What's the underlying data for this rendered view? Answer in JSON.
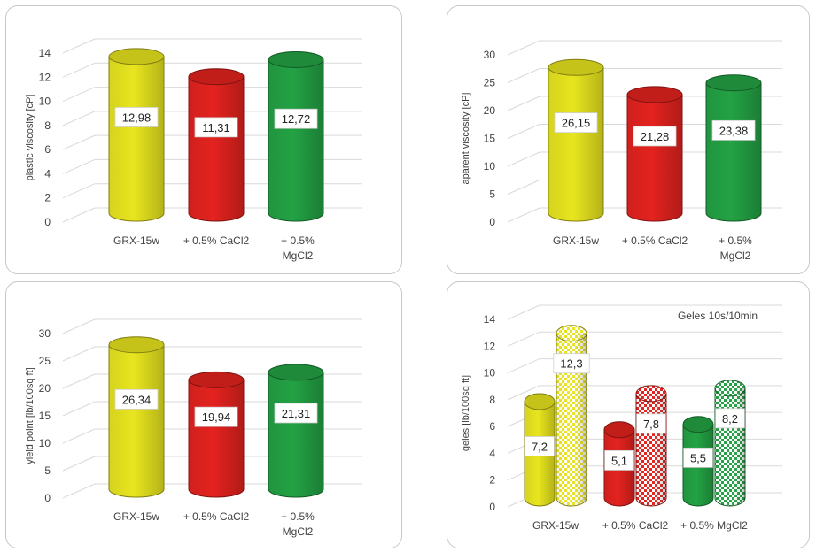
{
  "chart_data": [
    {
      "type": "bar",
      "ylabel": "plastic viscosity [cP]",
      "ylim": [
        0,
        14
      ],
      "yticks": [
        "0",
        "2",
        "4",
        "6",
        "8",
        "10",
        "12",
        "14"
      ],
      "categories": [
        "GRX-15w",
        "+ 0.5% CaCl2",
        "+ 0.5% MgCl2"
      ],
      "values": [
        12.98,
        11.31,
        12.72
      ],
      "labels": [
        "12,98",
        "11,31",
        "12,72"
      ],
      "colors": [
        "#e8e51f",
        "#e3231f",
        "#23a244"
      ],
      "grid": true
    },
    {
      "type": "bar",
      "ylabel": "aparent viscosity [cP]",
      "ylim": [
        0,
        30
      ],
      "yticks": [
        "0",
        "5",
        "10",
        "15",
        "20",
        "25",
        "30"
      ],
      "categories": [
        "GRX-15w",
        "+ 0.5% CaCl2",
        "+ 0.5% MgCl2"
      ],
      "values": [
        26.15,
        21.28,
        23.38
      ],
      "labels": [
        "26,15",
        "21,28",
        "23,38"
      ],
      "colors": [
        "#e8e51f",
        "#e3231f",
        "#23a244"
      ],
      "grid": true
    },
    {
      "type": "bar",
      "ylabel": "yield point [lb/100sq ft]",
      "ylim": [
        0,
        30
      ],
      "yticks": [
        "0",
        "5",
        "10",
        "15",
        "20",
        "25",
        "30"
      ],
      "categories": [
        "GRX-15w",
        "+ 0.5% CaCl2",
        "+ 0.5% MgCl2"
      ],
      "values": [
        26.34,
        19.94,
        21.31
      ],
      "labels": [
        "26,34",
        "19,94",
        "21,31"
      ],
      "colors": [
        "#e8e51f",
        "#e3231f",
        "#23a244"
      ],
      "grid": true
    },
    {
      "type": "bar",
      "title": "Geles 10s/10min",
      "ylabel": "geles [lb/100sq ft]",
      "ylim": [
        0,
        14
      ],
      "yticks": [
        "0",
        "2",
        "4",
        "6",
        "8",
        "10",
        "12",
        "14"
      ],
      "categories": [
        "GRX-15w",
        "+ 0.5% CaCl2",
        "+ 0.5% MgCl2"
      ],
      "series": [
        {
          "values": [
            7.2,
            5.1,
            5.5
          ],
          "labels": [
            "7,2",
            "5,1",
            "5,5"
          ],
          "pattern": "solid"
        },
        {
          "values": [
            12.3,
            7.8,
            8.2
          ],
          "labels": [
            "12,3",
            "7,8",
            "8,2"
          ],
          "pattern": "checkered"
        }
      ],
      "colors": [
        "#e8e51f",
        "#e3231f",
        "#23a244"
      ],
      "grid": true
    }
  ]
}
